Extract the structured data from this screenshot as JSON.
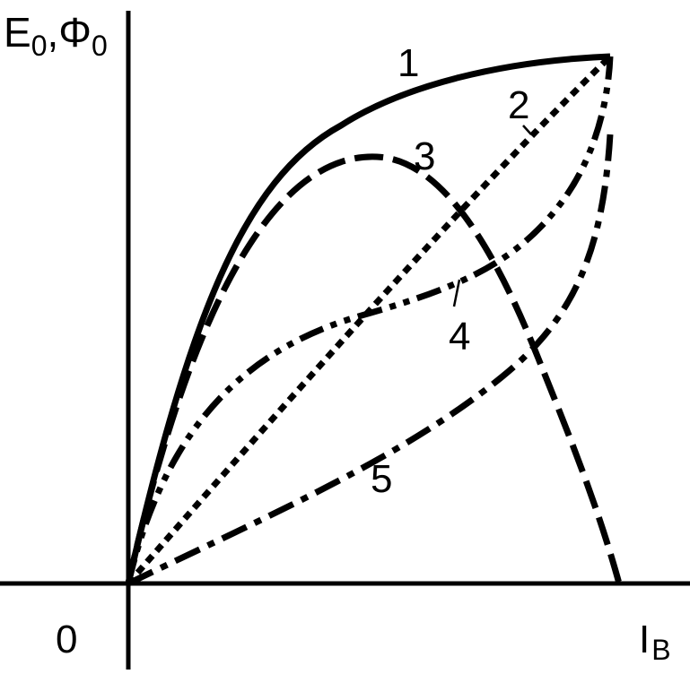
{
  "figure": {
    "y_axis_label": "E0,Φ0",
    "y_axis_label_main": "E",
    "y_axis_label_sub1": "0",
    "y_axis_label_sep": ",Φ",
    "y_axis_label_sub2": "0",
    "x_axis_label": "IB",
    "x_axis_label_main": "I",
    "x_axis_label_sub": "B",
    "origin_label": "0"
  },
  "curves": [
    {
      "label": "1",
      "style": "solid"
    },
    {
      "label": "2",
      "style": "dotted"
    },
    {
      "label": "3",
      "style": "dashed"
    },
    {
      "label": "4",
      "style": "dash-dot-dot"
    },
    {
      "label": "5",
      "style": "dash-dot"
    }
  ],
  "colors": {
    "ink": "#000000",
    "background": "#ffffff"
  }
}
